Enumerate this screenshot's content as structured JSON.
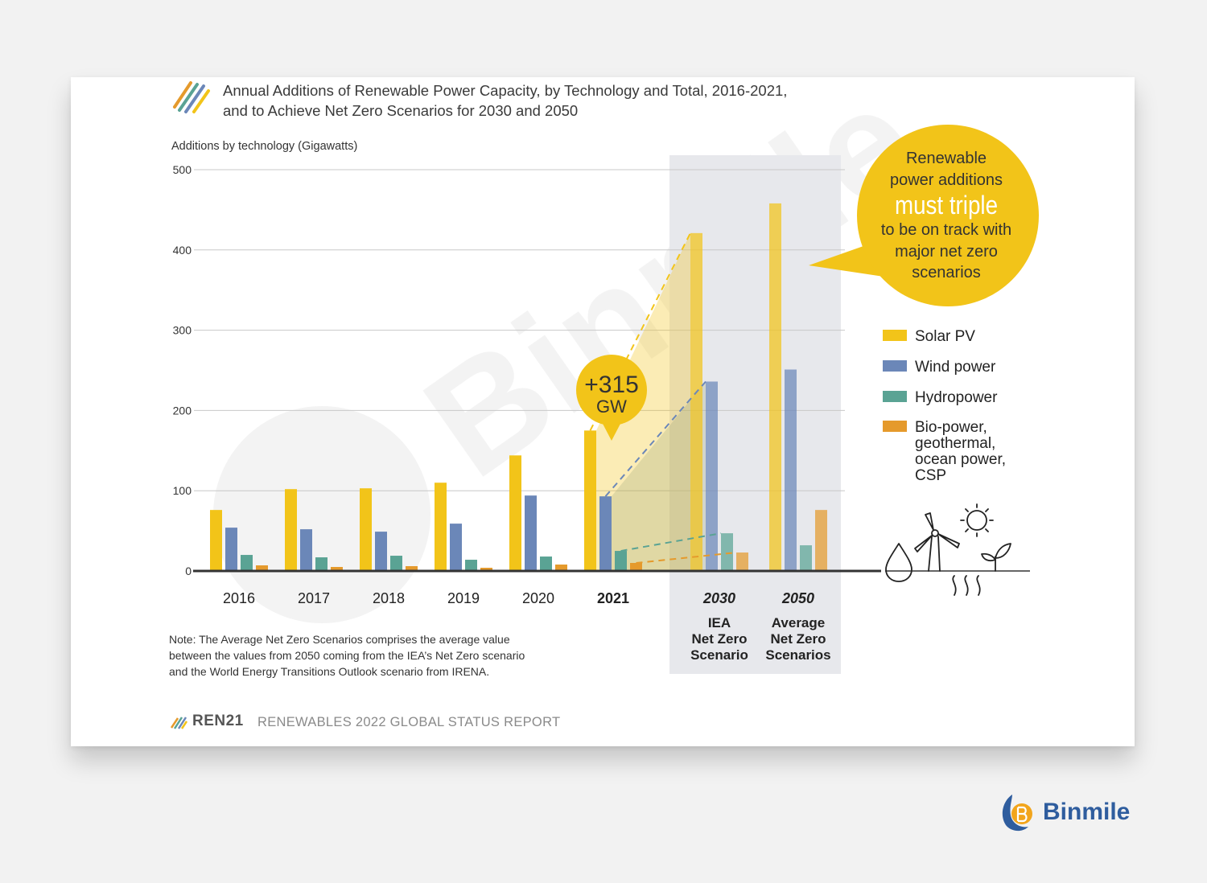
{
  "header": {
    "title_line1": "Annual Additions of Renewable Power Capacity, by Technology and Total, 2016-2021,",
    "title_line2": "and to Achieve Net Zero Scenarios for 2030 and 2050"
  },
  "note": {
    "line1": "Note: The Average Net Zero Scenarios comprises the average value",
    "line2": "between the values from 2050 coming from the IEA’s Net Zero scenario",
    "line3": "and the World Energy Transitions Outlook scenario from IRENA."
  },
  "footer": {
    "org": "REN21",
    "report": "RENEWABLES 2022 GLOBAL STATUS REPORT"
  },
  "watermark": {
    "text": "Binmile"
  },
  "brand": {
    "name": "Binmile"
  },
  "callout": {
    "line1": "Renewable",
    "line2": "power additions",
    "emphasis": "must triple",
    "line3": "to be on track with",
    "line4": "major net zero",
    "line5": "scenarios"
  },
  "badge": {
    "value": "+315",
    "unit": "GW"
  },
  "chart_data": {
    "type": "bar",
    "title": "",
    "xlabel": "",
    "ylabel": "Additions by technology (Gigawatts)",
    "ylim": [
      0,
      500
    ],
    "yticks": [
      0,
      100,
      200,
      300,
      400,
      500
    ],
    "grid": true,
    "legend_position": "right",
    "categories": [
      "2016",
      "2017",
      "2018",
      "2019",
      "2020",
      "2021",
      "2030",
      "2050"
    ],
    "category_sublabels": [
      "",
      "",
      "",
      "",
      "",
      "",
      "IEA\nNet Zero\nScenario",
      "Average\nNet Zero\nScenarios"
    ],
    "highlighted_category": "2021",
    "scenario_categories": [
      "2030",
      "2050"
    ],
    "series": [
      {
        "name": "Solar PV",
        "color": "#f2c419",
        "values": [
          76,
          102,
          103,
          110,
          144,
          175,
          421,
          458
        ]
      },
      {
        "name": "Wind power",
        "color": "#6b87b8",
        "values": [
          54,
          52,
          49,
          59,
          94,
          93,
          236,
          251
        ]
      },
      {
        "name": "Hydropower",
        "color": "#5aa394",
        "values": [
          20,
          17,
          19,
          14,
          18,
          25,
          47,
          32
        ]
      },
      {
        "name": "Bio-power, geothermal, ocean power, CSP",
        "color": "#e59a2c",
        "values": [
          7,
          5,
          6,
          4,
          8,
          10,
          23,
          76
        ]
      }
    ]
  }
}
